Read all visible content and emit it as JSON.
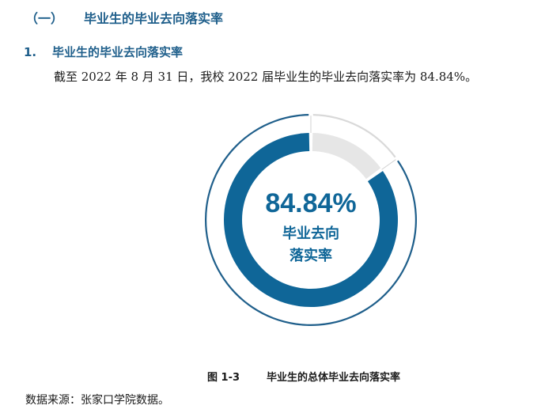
{
  "section_heading": {
    "number": "（一）",
    "title": "毕业生的毕业去向落实率"
  },
  "sub_heading": {
    "number": "1.",
    "title": "毕业生的毕业去向落实率"
  },
  "body_text": "截至 2022 年 8 月 31 日，我校 2022 届毕业生的毕业去向落实率为 84.84%。",
  "chart_data": {
    "type": "pie",
    "style": "donut",
    "values": [
      84.84,
      15.16
    ],
    "center_value": "84.84%",
    "center_label_lines": [
      "毕业去向",
      "落实率"
    ],
    "colors": {
      "filled": "#0f6698",
      "remaining": "#e6e6e6",
      "outer_ring": "#1f5f8b",
      "center_text": "#0f6698"
    }
  },
  "caption": {
    "figure_number": "图 1-3",
    "title": "毕业生的总体毕业去向落实率"
  },
  "source_note": "数据来源：张家口学院数据。"
}
